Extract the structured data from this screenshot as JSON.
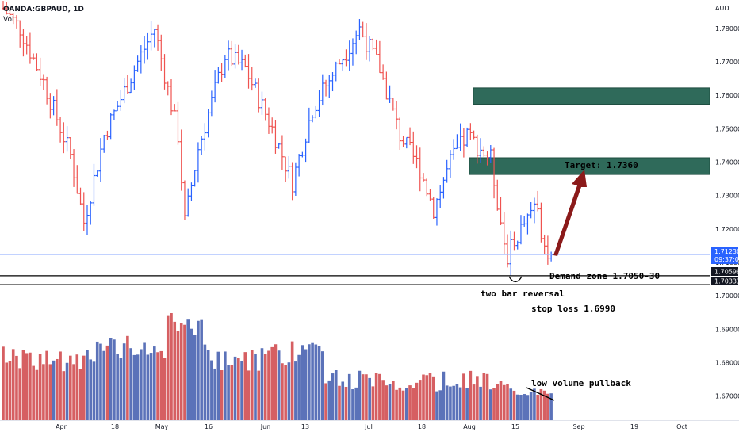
{
  "header": {
    "symbol": "OANDA:GBPAUD, 1D",
    "indicator": "Vol"
  },
  "chart_data": {
    "type": "ohlc",
    "currency_label": "AUD",
    "x_ticks": [
      "Apr",
      "18",
      "May",
      "16",
      "Jun",
      "13",
      "Jul",
      "18",
      "Aug",
      "15",
      "Sep",
      "19",
      "Oct"
    ],
    "y_ticks": [
      "1.78000",
      "1.77000",
      "1.76000",
      "1.75000",
      "1.74000",
      "1.73000",
      "1.72000",
      "1.71000",
      "1.70000",
      "1.69000",
      "1.68000",
      "1.67000"
    ],
    "y_range": [
      1.6628,
      1.7885
    ],
    "price_tags": [
      {
        "label": "1.71230",
        "sub": "09:37:04",
        "value": 1.7123,
        "color": "#2962ff"
      },
      {
        "label": "1.70599",
        "value": 1.70599,
        "color": "#131722"
      },
      {
        "label": "1.70333",
        "value": 1.70333,
        "color": "#131722"
      }
    ],
    "demand_zone": {
      "upper": 1.70599,
      "lower": 1.70333
    },
    "supply_zones": [
      {
        "top": 1.7622,
        "bottom": 1.7573
      },
      {
        "top": 1.7413,
        "bottom": 1.7363
      }
    ],
    "annotations": {
      "target": "Target: 1.7360",
      "demand": "Demand zone 1.7050-30",
      "reversal": "two bar reversal",
      "stop": "stop loss 1.6990",
      "volume": "low volume pullback"
    },
    "colors": {
      "up": "#2962ff",
      "down": "#ef5350",
      "vol_up": "#5b72b9",
      "vol_down": "#d65f62",
      "zone": "#2f6a5a",
      "arrow": "#8b1a1a"
    }
  }
}
